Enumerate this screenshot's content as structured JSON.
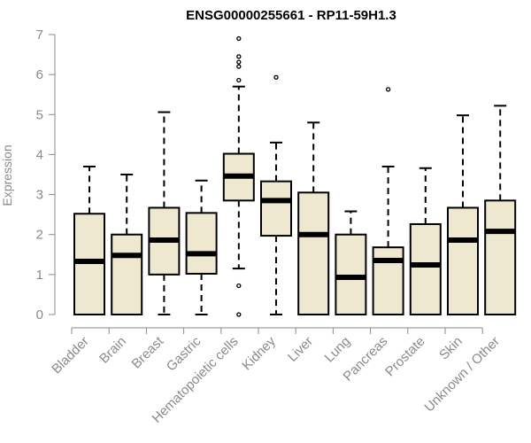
{
  "chart_data": {
    "type": "boxplot",
    "title": "ENSG00000255661 - RP11-59H1.3",
    "xlabel": "",
    "ylabel": "Expression",
    "ylim": [
      0,
      7
    ],
    "yticks": [
      0,
      1,
      2,
      3,
      4,
      5,
      6,
      7
    ],
    "box_fill": "#efe8d0",
    "box_stroke": "#000000",
    "axis_color": "#8a8a8a",
    "categories": [
      "Bladder",
      "Brain",
      "Breast",
      "Gastric",
      "Hematopoietic cells",
      "Kidney",
      "Liver",
      "Lung",
      "Pancreas",
      "Prostate",
      "Skin",
      "Unknown / Other"
    ],
    "series": [
      {
        "category": "Bladder",
        "min": 0,
        "q1": 0,
        "median": 1.33,
        "q3": 2.52,
        "max": 3.7,
        "outliers": []
      },
      {
        "category": "Brain",
        "min": 0,
        "q1": 0,
        "median": 1.48,
        "q3": 2.0,
        "max": 3.5,
        "outliers": []
      },
      {
        "category": "Breast",
        "min": 0,
        "q1": 1.0,
        "median": 1.86,
        "q3": 2.67,
        "max": 5.06,
        "outliers": []
      },
      {
        "category": "Gastric",
        "min": 0,
        "q1": 1.02,
        "median": 1.52,
        "q3": 2.54,
        "max": 3.35,
        "outliers": []
      },
      {
        "category": "Hematopoietic cells",
        "min": 1.15,
        "q1": 2.85,
        "median": 3.46,
        "q3": 4.02,
        "max": 5.7,
        "outliers": [
          0,
          0.72,
          5.86,
          6.2,
          6.31,
          6.45,
          6.9
        ]
      },
      {
        "category": "Kidney",
        "min": 0,
        "q1": 1.97,
        "median": 2.85,
        "q3": 3.33,
        "max": 4.3,
        "outliers": [
          5.93
        ]
      },
      {
        "category": "Liver",
        "min": 0,
        "q1": 0,
        "median": 2.0,
        "q3": 3.05,
        "max": 4.8,
        "outliers": []
      },
      {
        "category": "Lung",
        "min": 0,
        "q1": 0,
        "median": 0.93,
        "q3": 2.0,
        "max": 2.58,
        "outliers": []
      },
      {
        "category": "Pancreas",
        "min": 0,
        "q1": 0,
        "median": 1.35,
        "q3": 1.68,
        "max": 3.7,
        "outliers": [
          5.63
        ]
      },
      {
        "category": "Prostate",
        "min": 0,
        "q1": 0,
        "median": 1.24,
        "q3": 2.26,
        "max": 3.66,
        "outliers": []
      },
      {
        "category": "Skin",
        "min": 0,
        "q1": 0,
        "median": 1.86,
        "q3": 2.67,
        "max": 4.98,
        "outliers": []
      },
      {
        "category": "Unknown / Other",
        "min": 0,
        "q1": 0,
        "median": 2.08,
        "q3": 2.85,
        "max": 5.22,
        "outliers": []
      }
    ]
  }
}
